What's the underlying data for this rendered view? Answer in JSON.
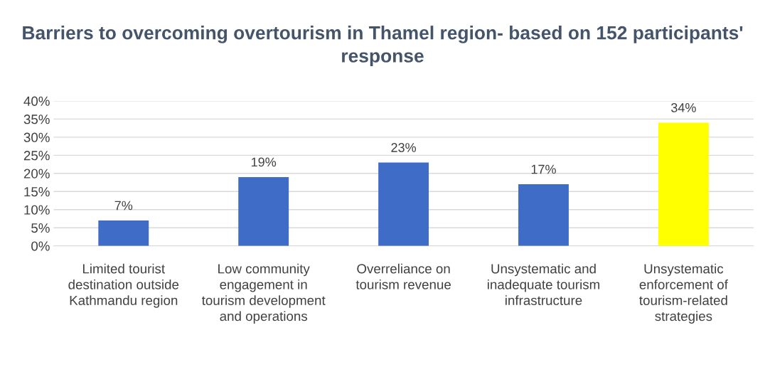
{
  "chart_data": {
    "type": "bar",
    "title": "Barriers to overcoming overtourism in Thamel region- based on 152 participants' response",
    "categories": [
      "Limited tourist destination outside Kathmandu region",
      "Low community engagement in tourism development and operations",
      "Overreliance on tourism revenue",
      "Unsystematic and inadequate tourism infrastructure",
      "Unsystematic enforcement of tourism-related strategies"
    ],
    "values": [
      7,
      19,
      23,
      17,
      34
    ],
    "colors": [
      "#3f6cc6",
      "#3f6cc6",
      "#3f6cc6",
      "#3f6cc6",
      "#ffff00"
    ],
    "value_labels": [
      "7%",
      "19%",
      "23%",
      "17%",
      "34%"
    ],
    "ylim": [
      0,
      40
    ],
    "yticks": [
      {
        "value": 0,
        "label": "0%"
      },
      {
        "value": 5,
        "label": "5%"
      },
      {
        "value": 10,
        "label": "10%"
      },
      {
        "value": 15,
        "label": "15%"
      },
      {
        "value": 20,
        "label": "20%"
      },
      {
        "value": 25,
        "label": "25%"
      },
      {
        "value": 30,
        "label": "30%"
      },
      {
        "value": 35,
        "label": "35%"
      },
      {
        "value": 40,
        "label": "40%"
      }
    ],
    "grid": "y"
  }
}
